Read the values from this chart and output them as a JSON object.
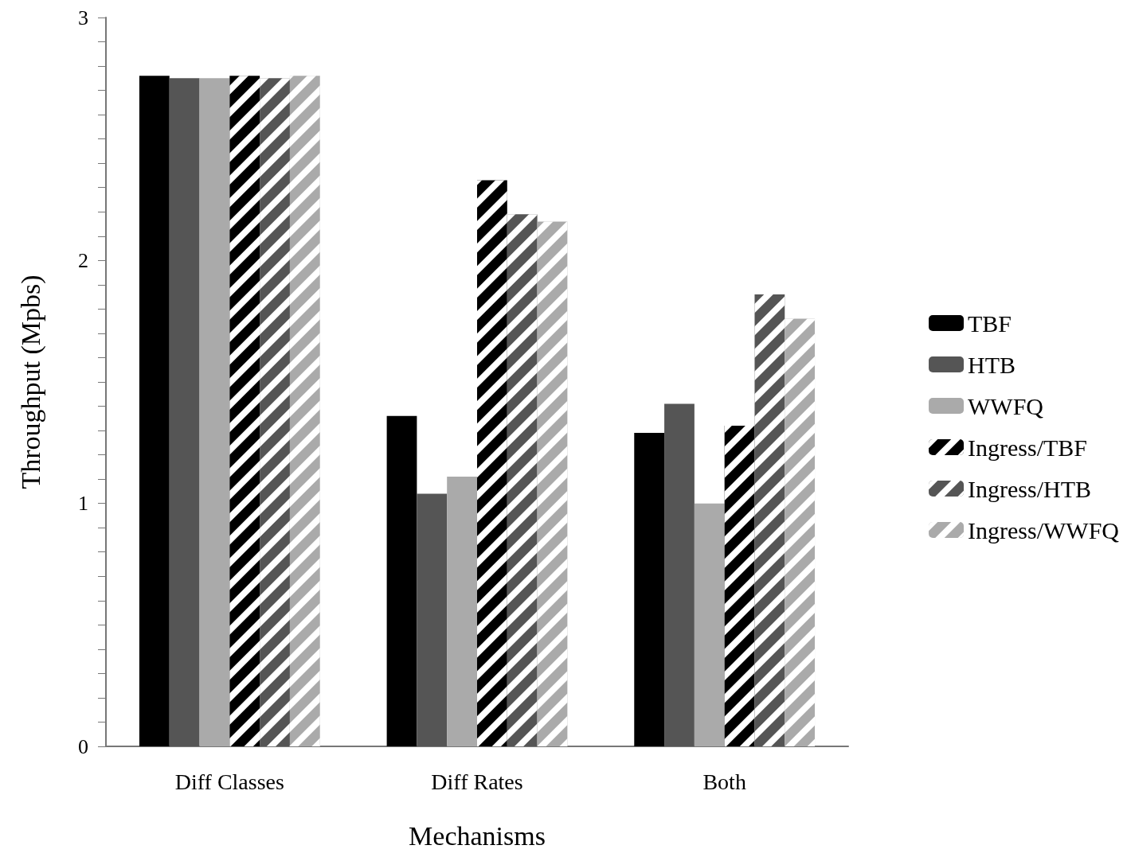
{
  "chart_data": {
    "type": "bar",
    "xlabel": "Mechanisms",
    "ylabel": "Throughput (Mpbs)",
    "categories": [
      "Diff Classes",
      "Diff Rates",
      "Both"
    ],
    "series": [
      {
        "name": "TBF",
        "color": "#000000",
        "values": [
          2.76,
          1.36,
          1.29
        ]
      },
      {
        "name": "HTB",
        "color": "#555555",
        "values": [
          2.75,
          1.04,
          1.41
        ]
      },
      {
        "name": "WWFQ",
        "color": "#aaaaaa",
        "values": [
          2.75,
          1.11,
          1.0
        ]
      },
      {
        "name": "Ingress/TBF",
        "color": "#000000",
        "values": [
          2.76,
          2.33,
          1.32
        ]
      },
      {
        "name": "Ingress/HTB",
        "color": "#555555",
        "values": [
          2.75,
          2.19,
          1.86
        ]
      },
      {
        "name": "Ingress/WWFQ",
        "color": "#aaaaaa",
        "values": [
          2.76,
          2.16,
          1.76
        ]
      }
    ],
    "ylim": [
      0,
      3
    ],
    "yticks": [
      0,
      {
        "value": 0.1,
        "label": null
      },
      {
        "value": 0.2,
        "label": null
      },
      {
        "value": 0.3,
        "label": null
      },
      {
        "value": 0.4,
        "label": null
      },
      {
        "value": 0.5,
        "label": null
      },
      {
        "value": 0.6,
        "label": null
      },
      {
        "value": 0.7,
        "label": null
      },
      {
        "value": 0.8,
        "label": null
      },
      {
        "value": 0.9,
        "label": null
      },
      1,
      {
        "value": 1.1,
        "label": null
      },
      {
        "value": 1.2,
        "label": null
      },
      {
        "value": 1.3,
        "label": null
      },
      {
        "value": 1.4,
        "label": null
      },
      {
        "value": 1.5,
        "label": null
      },
      {
        "value": 1.6,
        "label": null
      },
      {
        "value": 1.7,
        "label": null
      },
      {
        "value": 1.8,
        "label": null
      },
      {
        "value": 1.9,
        "label": null
      },
      2,
      {
        "value": 2.1,
        "label": null
      },
      {
        "value": 2.2,
        "label": null
      },
      {
        "value": 2.3,
        "label": null
      },
      {
        "value": 2.4,
        "label": null
      },
      {
        "value": 2.5,
        "label": null
      },
      {
        "value": 2.6,
        "label": null
      },
      {
        "value": 2.7,
        "label": null
      },
      {
        "value": 2.8,
        "label": null
      },
      {
        "value": 2.9,
        "label": null
      },
      3
    ],
    "grid": false,
    "legend": "right"
  }
}
